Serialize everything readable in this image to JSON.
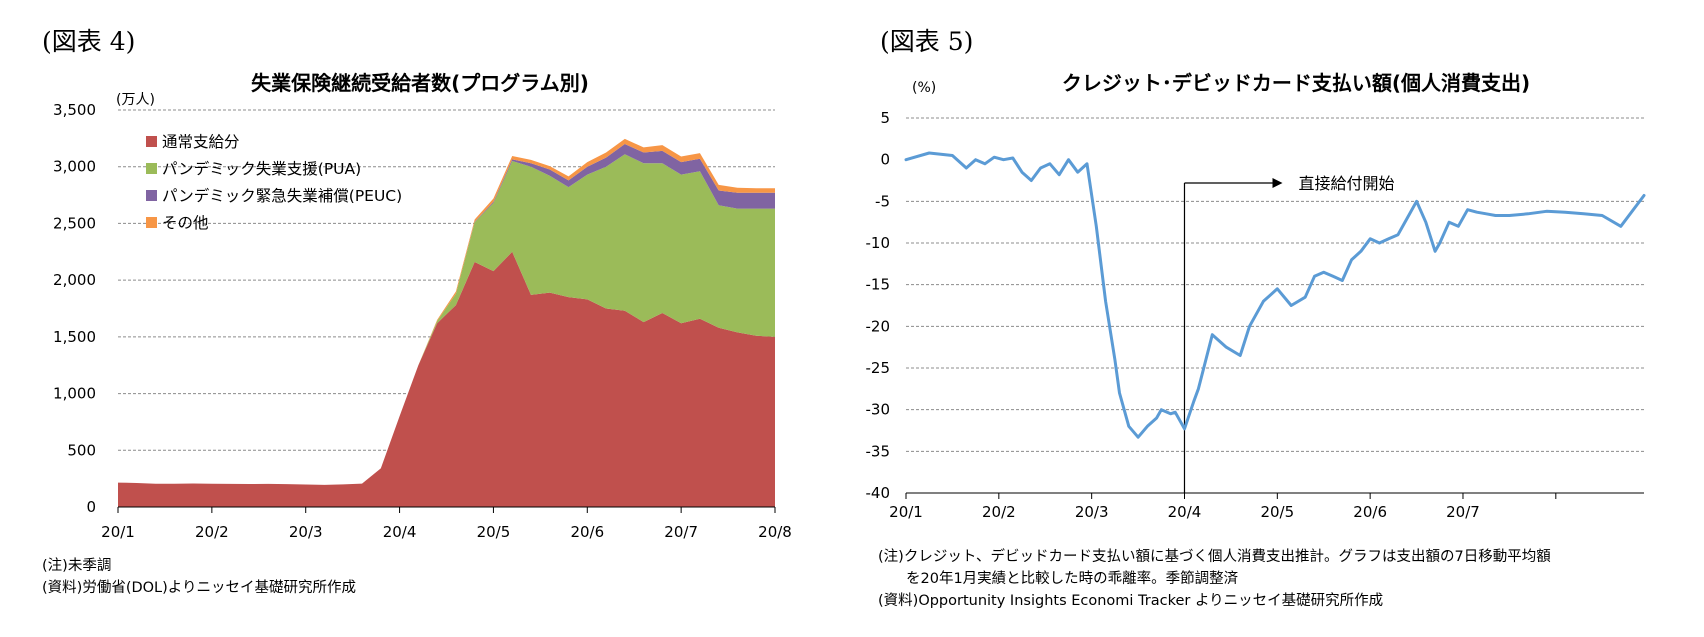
{
  "figures": [
    {
      "label": "(図表 4)",
      "notes": [
        "(注)未季調",
        "(資料)労働省(DOL)よりニッセイ基礎研究所作成"
      ]
    },
    {
      "label": "(図表 5)",
      "notes": [
        "(注)クレジット、デビッドカード支払い額に基づく個人消費支出推計。グラフは支出額の7日移動平均額",
        "を20年1月実績と比較した時の乖離率。季節調整済",
        "(資料)Opportunity Insights Economi Tracker よりニッセイ基礎研究所作成"
      ]
    }
  ],
  "chart_data": [
    {
      "type": "area",
      "stacked": true,
      "title": "失業保険継続受給者数(プログラム別)",
      "ylabel": "(万人)",
      "ylim": [
        0,
        3500
      ],
      "yticks": [
        0,
        500,
        1000,
        1500,
        2000,
        2500,
        3000,
        3500
      ],
      "ytick_labels": [
        "0",
        "500",
        "1,000",
        "1,500",
        "2,000",
        "2,500",
        "3,000",
        "3,500"
      ],
      "xlim": [
        0,
        7
      ],
      "xticks": [
        0,
        1,
        2,
        3,
        4,
        5,
        6,
        7
      ],
      "xtick_labels": [
        "20/1",
        "20/2",
        "20/3",
        "20/4",
        "20/5",
        "20/6",
        "20/7",
        "20/8"
      ],
      "grid": true,
      "legend_position": "top-left",
      "x": [
        0,
        0.2,
        0.4,
        0.6,
        0.8,
        1.0,
        1.2,
        1.4,
        1.6,
        1.8,
        2.0,
        2.2,
        2.4,
        2.6,
        2.8,
        3.0,
        3.2,
        3.4,
        3.6,
        3.8,
        4.0,
        4.2,
        4.4,
        4.6,
        4.8,
        5.0,
        5.2,
        5.4,
        5.6,
        5.8,
        6.0,
        6.2,
        6.4,
        6.6,
        6.8,
        7.0
      ],
      "series": [
        {
          "name": "通常支給分",
          "color": "#C0504D",
          "values": [
            215,
            212,
            205,
            205,
            207,
            205,
            204,
            203,
            204,
            202,
            198,
            195,
            200,
            206,
            340,
            800,
            1250,
            1620,
            1780,
            2160,
            2080,
            2250,
            1870,
            1890,
            1850,
            1830,
            1750,
            1730,
            1630,
            1710,
            1620,
            1660,
            1580,
            1540,
            1510,
            1500
          ]
        },
        {
          "name": "パンデミック失業支援(PUA)",
          "color": "#9BBB59",
          "values": [
            0,
            0,
            0,
            0,
            0,
            0,
            0,
            0,
            0,
            0,
            0,
            0,
            0,
            0,
            0,
            0,
            0,
            20,
            100,
            350,
            600,
            800,
            1130,
            1030,
            970,
            1100,
            1250,
            1380,
            1400,
            1320,
            1310,
            1300,
            1080,
            1090,
            1120,
            1130
          ]
        },
        {
          "name": "パンデミック緊急失業補償(PEUC)",
          "color": "#8064A2",
          "values": [
            0,
            0,
            0,
            0,
            0,
            0,
            0,
            0,
            0,
            0,
            0,
            0,
            0,
            0,
            0,
            0,
            0,
            0,
            0,
            5,
            10,
            15,
            30,
            55,
            60,
            70,
            80,
            90,
            95,
            110,
            110,
            110,
            130,
            140,
            140,
            140
          ]
        },
        {
          "name": "その他",
          "color": "#F79646",
          "values": [
            0,
            0,
            0,
            0,
            0,
            0,
            0,
            0,
            0,
            0,
            0,
            0,
            0,
            0,
            0,
            0,
            0,
            10,
            20,
            20,
            30,
            30,
            30,
            30,
            35,
            40,
            45,
            45,
            45,
            50,
            50,
            50,
            50,
            45,
            40,
            40
          ]
        }
      ]
    },
    {
      "type": "line",
      "title": "クレジット･デビッドカード支払い額(個人消費支出)",
      "ylabel": "(%)",
      "ylim": [
        -40,
        5
      ],
      "yticks": [
        -40,
        -35,
        -30,
        -25,
        -20,
        -15,
        -10,
        -5,
        0,
        5
      ],
      "ytick_labels": [
        "-40",
        "-35",
        "-30",
        "-25",
        "-20",
        "-15",
        "-10",
        "-5",
        "0",
        "5"
      ],
      "xlim": [
        0,
        7.95
      ],
      "xticks": [
        0,
        1,
        2,
        3,
        4,
        5,
        6,
        7
      ],
      "xtick_labels": [
        "20/1",
        "20/2",
        "20/3",
        "20/4",
        "20/5",
        "20/6",
        "20/7"
      ],
      "grid": true,
      "annotation": {
        "text": "直接給付開始",
        "x": 3.0
      },
      "series": [
        {
          "name": "",
          "color": "#5B9BD5",
          "x": [
            0,
            0.25,
            0.5,
            0.65,
            0.75,
            0.85,
            0.95,
            1.05,
            1.15,
            1.25,
            1.35,
            1.45,
            1.55,
            1.65,
            1.75,
            1.85,
            1.95,
            2.05,
            2.15,
            2.25,
            2.3,
            2.4,
            2.5,
            2.6,
            2.7,
            2.75,
            2.85,
            2.9,
            3.0,
            3.1,
            3.15,
            3.3,
            3.45,
            3.6,
            3.7,
            3.85,
            4.0,
            4.15,
            4.3,
            4.4,
            4.5,
            4.6,
            4.7,
            4.8,
            4.9,
            5.0,
            5.1,
            5.2,
            5.3,
            5.4,
            5.5,
            5.6,
            5.7,
            5.75,
            5.85,
            5.95,
            6.05,
            6.15,
            6.25,
            6.35,
            6.5,
            6.7,
            6.9,
            7.1,
            7.3,
            7.5,
            7.7,
            7.95
          ],
          "y": [
            0,
            0.8,
            0.5,
            -1,
            0,
            -0.5,
            0.3,
            0,
            0.2,
            -1.5,
            -2.5,
            -1,
            -0.5,
            -1.8,
            0,
            -1.5,
            -0.5,
            -8,
            -17,
            -24,
            -28,
            -32,
            -33.3,
            -32,
            -31,
            -30,
            -30.5,
            -30.3,
            -32.3,
            -29,
            -27.5,
            -21,
            -22.5,
            -23.5,
            -20,
            -17,
            -15.5,
            -17.5,
            -16.5,
            -14,
            -13.5,
            -14,
            -14.5,
            -12,
            -11,
            -9.5,
            -10,
            -9.5,
            -9,
            -7,
            -5,
            -7.5,
            -11,
            -10,
            -7.5,
            -8,
            -6,
            -6.3,
            -6.5,
            -6.7,
            -6.7,
            -6.5,
            -6.2,
            -6.3,
            -6.5,
            -6.7,
            -8,
            -4.3
          ]
        }
      ]
    }
  ]
}
